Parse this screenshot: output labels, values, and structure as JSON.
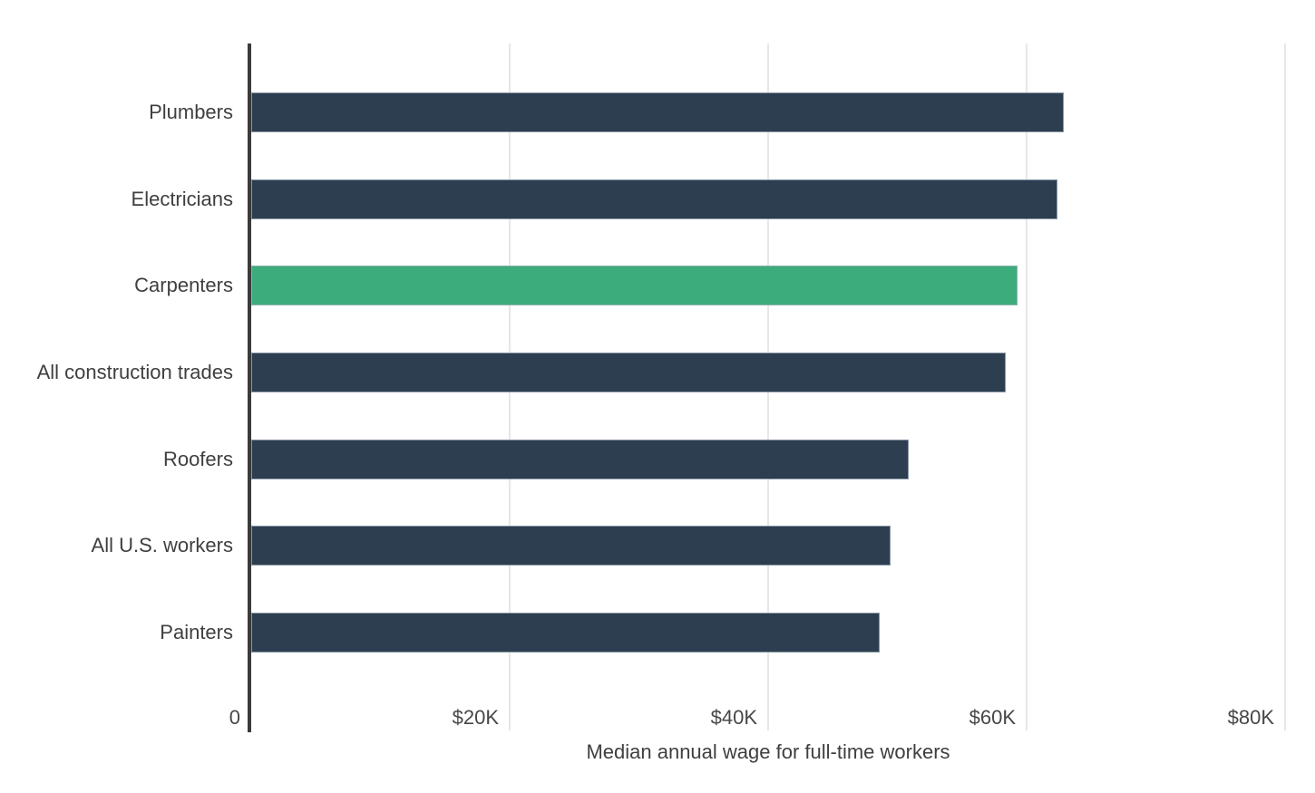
{
  "chart_data": {
    "type": "bar",
    "orientation": "horizontal",
    "title": "",
    "xlabel": "Median annual wage for full-time workers",
    "ylabel": "",
    "xlim": [
      0,
      80000
    ],
    "grid": "vertical-gridlines-on",
    "legend": "none",
    "categories": [
      "Plumbers",
      "Electricians",
      "Carpenters",
      "All construction trades",
      "Roofers",
      "All U.S. workers",
      "Painters"
    ],
    "values": [
      62900,
      62400,
      59300,
      58400,
      50900,
      49500,
      48600
    ],
    "bar_colors": [
      "#2d3e50",
      "#2d3e50",
      "#3dac7c",
      "#2d3e50",
      "#2d3e50",
      "#2d3e50",
      "#2d3e50"
    ],
    "highlight_category": "Carpenters",
    "highlight_color": "#3dac7c",
    "default_color": "#2d3e50",
    "x_ticks": [
      {
        "value": 0,
        "label": "0"
      },
      {
        "value": 20000,
        "label": "$20K"
      },
      {
        "value": 40000,
        "label": "$40K"
      },
      {
        "value": 60000,
        "label": "$60K"
      },
      {
        "value": 80000,
        "label": "$80K"
      }
    ],
    "colors": {
      "axis_line": "#3b3b3b",
      "gridline": "#e7e7e7",
      "label_text": "#3f3f3f",
      "tick_text": "#474747"
    }
  }
}
